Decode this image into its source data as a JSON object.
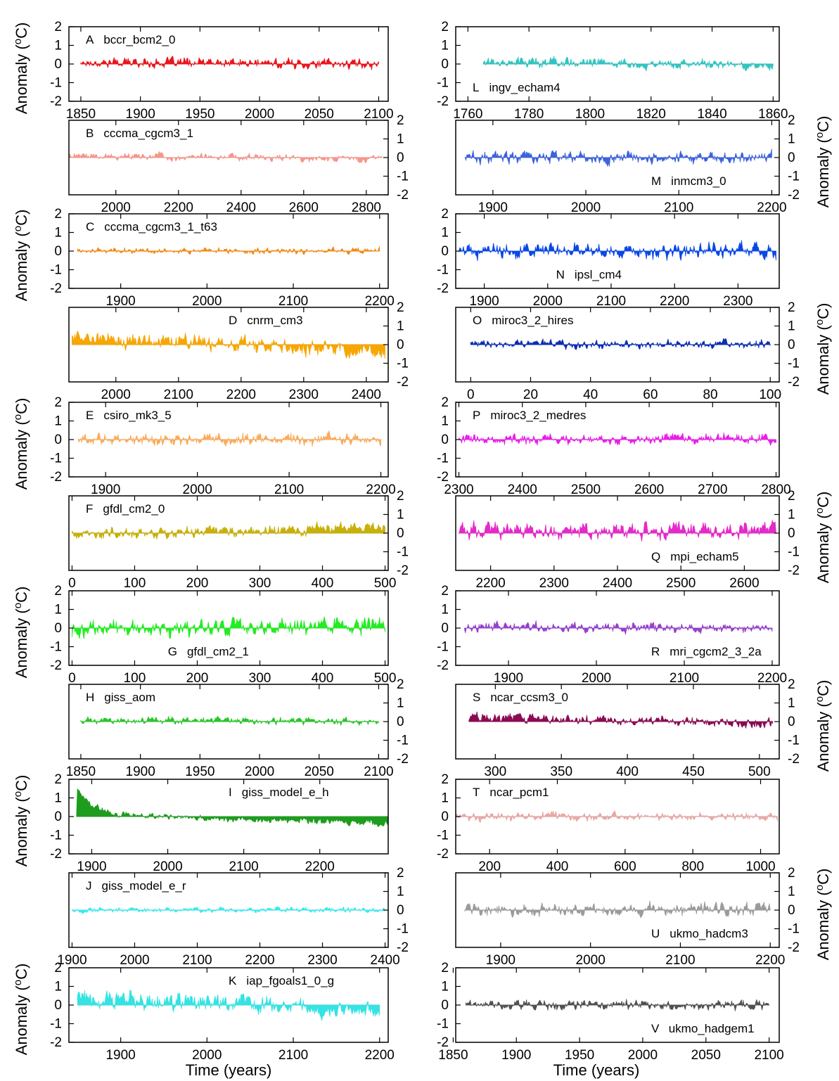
{
  "figure": {
    "y_axis_title": "Anomaly (oC)",
    "y_axis_title_prefix": "Anomaly (",
    "y_axis_title_sup": "o",
    "y_axis_title_suffix": "C)",
    "x_axis_title": "Time (years)"
  },
  "chart_data": [
    {
      "type": "area",
      "letter": "A",
      "name": "bccr_bcm2_0",
      "label_position": "top-left",
      "color": "#e8161c",
      "x_range": [
        1850,
        2100
      ],
      "xlim": [
        1840,
        2108
      ],
      "xticks": [
        1850,
        1900,
        1950,
        2000,
        2050,
        2100
      ],
      "ylim": [
        -2,
        2
      ],
      "yticks": [
        2,
        1,
        0,
        -1,
        -2
      ],
      "y_axis_side": "left",
      "x_ticks_visible": true,
      "amplitude": 0.22,
      "trend": [
        0.1,
        0.0
      ]
    },
    {
      "type": "area",
      "letter": "L",
      "name": "ingv_echam4",
      "label_position": "bottom-left",
      "color": "#33c4c0",
      "x_range": [
        1765,
        1860
      ],
      "xlim": [
        1756,
        1862
      ],
      "xticks": [
        1760,
        1780,
        1800,
        1820,
        1840,
        1860
      ],
      "ylim": [
        -2,
        2
      ],
      "yticks": [
        2,
        1,
        0,
        -1,
        -2
      ],
      "y_axis_side": "left",
      "x_ticks_visible": true,
      "amplitude": 0.22,
      "trend": [
        0.15,
        -0.1
      ]
    },
    {
      "type": "area",
      "letter": "B",
      "name": "cccma_cgcm3_1",
      "label_position": "top-left",
      "color": "#f7968a",
      "x_range": [
        1850,
        2850
      ],
      "xlim": [
        1850,
        2870
      ],
      "xticks": [
        2000,
        2200,
        2400,
        2600,
        2800
      ],
      "ylim": [
        -2,
        2
      ],
      "yticks": [
        2,
        1,
        0,
        -1,
        -2
      ],
      "y_axis_side": "right",
      "x_ticks_visible": true,
      "amplitude": 0.15,
      "trend": [
        0.1,
        -0.1
      ]
    },
    {
      "type": "area",
      "letter": "M",
      "name": "inmcm3_0",
      "label_position": "bottom-right",
      "color": "#3d63dc",
      "x_range": [
        1870,
        2200
      ],
      "xlim": [
        1860,
        2208
      ],
      "xticks": [
        1900,
        2000,
        2100,
        2200
      ],
      "ylim": [
        -2,
        2
      ],
      "yticks": [
        2,
        1,
        0,
        -1,
        -2
      ],
      "y_axis_side": "right",
      "x_ticks_visible": true,
      "amplitude": 0.28,
      "trend": [
        0.0,
        0.05
      ]
    },
    {
      "type": "area",
      "letter": "C",
      "name": "cccma_cgcm3_1_t63",
      "label_position": "top-left",
      "color": "#f58a10",
      "x_range": [
        1850,
        2200
      ],
      "xlim": [
        1840,
        2210
      ],
      "xticks": [
        1900,
        2000,
        2100,
        2200
      ],
      "ylim": [
        -2,
        2
      ],
      "yticks": [
        2,
        1,
        0,
        -1,
        -2
      ],
      "y_axis_side": "left",
      "x_ticks_visible": true,
      "amplitude": 0.14,
      "trend": [
        0.05,
        0.0
      ]
    },
    {
      "type": "area",
      "letter": "N",
      "name": "ipsl_cm4",
      "label_position": "bottom-middle",
      "color": "#0a48e6",
      "x_range": [
        1860,
        2360
      ],
      "xlim": [
        1855,
        2365
      ],
      "xticks": [
        1900,
        2000,
        2100,
        2200,
        2300
      ],
      "ylim": [
        -2,
        2
      ],
      "yticks": [
        2,
        1,
        0,
        -1,
        -2
      ],
      "y_axis_side": "left",
      "x_ticks_visible": true,
      "amplitude": 0.35,
      "trend": [
        0.0,
        0.05
      ]
    },
    {
      "type": "area",
      "letter": "D",
      "name": "cnrm_cm3",
      "label_position": "top-right",
      "color": "#f7a602",
      "x_range": [
        1930,
        2430
      ],
      "xlim": [
        1925,
        2435
      ],
      "xticks": [
        2000,
        2100,
        2200,
        2300,
        2400
      ],
      "ylim": [
        -2,
        2
      ],
      "yticks": [
        2,
        1,
        0,
        -1,
        -2
      ],
      "y_axis_side": "right",
      "x_ticks_visible": true,
      "amplitude": 0.35,
      "trend": [
        0.4,
        -0.4
      ]
    },
    {
      "type": "area",
      "letter": "O",
      "name": "miroc3_2_hires",
      "label_position": "top-left",
      "color": "#0a2eb4",
      "x_range": [
        0,
        100
      ],
      "xlim": [
        -5,
        103
      ],
      "xticks": [
        0,
        20,
        40,
        60,
        80,
        100
      ],
      "ylim": [
        -2,
        2
      ],
      "yticks": [
        2,
        1,
        0,
        -1,
        -2
      ],
      "y_axis_side": "right",
      "x_ticks_visible": true,
      "amplitude": 0.18,
      "trend": [
        0.0,
        0.05
      ]
    },
    {
      "type": "area",
      "letter": "E",
      "name": "csiro_mk3_5",
      "label_position": "top-left",
      "color": "#fbab5c",
      "x_range": [
        1870,
        2200
      ],
      "xlim": [
        1860,
        2208
      ],
      "xticks": [
        1900,
        2000,
        2100,
        2200
      ],
      "ylim": [
        -2,
        2
      ],
      "yticks": [
        2,
        1,
        0,
        -1,
        -2
      ],
      "y_axis_side": "left",
      "x_ticks_visible": true,
      "amplitude": 0.28,
      "trend": [
        0.0,
        0.0
      ]
    },
    {
      "type": "area",
      "letter": "P",
      "name": "miroc3_2_medres",
      "label_position": "top-left",
      "color": "#ea1eea",
      "x_range": [
        2300,
        2800
      ],
      "xlim": [
        2295,
        2805
      ],
      "xticks": [
        2300,
        2400,
        2500,
        2600,
        2700,
        2800
      ],
      "ylim": [
        -2,
        2
      ],
      "yticks": [
        2,
        1,
        0,
        -1,
        -2
      ],
      "y_axis_side": "left",
      "x_ticks_visible": true,
      "amplitude": 0.22,
      "trend": [
        0.0,
        0.05
      ]
    },
    {
      "type": "area",
      "letter": "F",
      "name": "gfdl_cm2_0",
      "label_position": "top-left",
      "color": "#c8b00a",
      "x_range": [
        0,
        500
      ],
      "xlim": [
        -5,
        505
      ],
      "xticks": [
        0,
        100,
        200,
        300,
        400,
        500
      ],
      "ylim": [
        -2,
        2
      ],
      "yticks": [
        2,
        1,
        0,
        -1,
        -2
      ],
      "y_axis_side": "right",
      "x_ticks_visible": true,
      "amplitude": 0.25,
      "trend": [
        -0.1,
        0.35
      ]
    },
    {
      "type": "area",
      "letter": "Q",
      "name": "mpi_echam5",
      "label_position": "bottom-right",
      "color": "#e42ac8",
      "x_range": [
        2150,
        2650
      ],
      "xlim": [
        2145,
        2655
      ],
      "xticks": [
        2200,
        2300,
        2400,
        2500,
        2600
      ],
      "ylim": [
        -2,
        2
      ],
      "yticks": [
        2,
        1,
        0,
        -1,
        -2
      ],
      "y_axis_side": "right",
      "x_ticks_visible": true,
      "amplitude": 0.35,
      "trend": [
        0.1,
        0.15
      ]
    },
    {
      "type": "area",
      "letter": "G",
      "name": "gfdl_cm2_1",
      "label_position": "bottom-middle",
      "color": "#22ec22",
      "x_range": [
        0,
        500
      ],
      "xlim": [
        -5,
        505
      ],
      "xticks": [
        0,
        100,
        200,
        300,
        400,
        500
      ],
      "ylim": [
        -2,
        2
      ],
      "yticks": [
        2,
        1,
        0,
        -1,
        -2
      ],
      "y_axis_side": "left",
      "x_ticks_visible": true,
      "amplitude": 0.38,
      "trend": [
        -0.1,
        0.2
      ]
    },
    {
      "type": "area",
      "letter": "R",
      "name": "mri_cgcm2_3_2a",
      "label_position": "bottom-right",
      "color": "#9640cc",
      "x_range": [
        1850,
        2200
      ],
      "xlim": [
        1840,
        2208
      ],
      "xticks": [
        1900,
        2000,
        2100,
        2200
      ],
      "ylim": [
        -2,
        2
      ],
      "yticks": [
        2,
        1,
        0,
        -1,
        -2
      ],
      "y_axis_side": "left",
      "x_ticks_visible": true,
      "amplitude": 0.22,
      "trend": [
        0.05,
        0.0
      ]
    },
    {
      "type": "area",
      "letter": "H",
      "name": "giss_aom",
      "label_position": "top-left",
      "color": "#28c828",
      "x_range": [
        1850,
        2100
      ],
      "xlim": [
        1840,
        2108
      ],
      "xticks": [
        1850,
        1900,
        1950,
        2000,
        2050,
        2100
      ],
      "ylim": [
        -2,
        2
      ],
      "yticks": [
        2,
        1,
        0,
        -1,
        -2
      ],
      "y_axis_side": "right",
      "x_ticks_visible": true,
      "amplitude": 0.16,
      "trend": [
        0.1,
        0.0
      ]
    },
    {
      "type": "area",
      "letter": "S",
      "name": "ncar_ccsm3_0",
      "label_position": "top-left",
      "color": "#8c0a52",
      "x_range": [
        280,
        510
      ],
      "xlim": [
        270,
        515
      ],
      "xticks": [
        300,
        350,
        400,
        450,
        500
      ],
      "ylim": [
        -2,
        2
      ],
      "yticks": [
        2,
        1,
        0,
        -1,
        -2
      ],
      "y_axis_side": "right",
      "x_ticks_visible": true,
      "amplitude": 0.22,
      "trend": [
        0.25,
        -0.1
      ]
    },
    {
      "type": "area",
      "letter": "I",
      "name": "giss_model_e_h",
      "label_position": "top-right",
      "color": "#1e9c1e",
      "x_range": [
        1880,
        2290
      ],
      "xlim": [
        1870,
        2290
      ],
      "xticks": [
        1900,
        2000,
        2100,
        2200
      ],
      "ylim": [
        -2,
        2
      ],
      "yticks": [
        2,
        1,
        0,
        -1,
        -2
      ],
      "y_axis_side": "left",
      "x_ticks_visible": true,
      "amplitude": 0.14,
      "trend": [
        0.6,
        -0.3
      ],
      "spike": true
    },
    {
      "type": "area",
      "letter": "T",
      "name": "ncar_pcm1",
      "label_position": "top-left",
      "color": "#e6a8a4",
      "x_range": [
        100,
        1050
      ],
      "xlim": [
        100,
        1055
      ],
      "xticks": [
        200,
        400,
        600,
        800,
        1000
      ],
      "ylim": [
        -2,
        2
      ],
      "yticks": [
        2,
        1,
        0,
        -1,
        -2
      ],
      "y_axis_side": "left",
      "x_ticks_visible": true,
      "amplitude": 0.2,
      "trend": [
        0.0,
        0.0
      ]
    },
    {
      "type": "area",
      "letter": "J",
      "name": "giss_model_e_r",
      "label_position": "top-left",
      "color": "#33ecf2",
      "x_range": [
        1900,
        2400
      ],
      "xlim": [
        1895,
        2405
      ],
      "xticks": [
        1900,
        2000,
        2100,
        2200,
        2300,
        2400
      ],
      "ylim": [
        -2,
        2
      ],
      "yticks": [
        2,
        1,
        0,
        -1,
        -2
      ],
      "y_axis_side": "right",
      "x_ticks_visible": true,
      "amplitude": 0.12,
      "trend": [
        0.0,
        0.0
      ]
    },
    {
      "type": "area",
      "letter": "U",
      "name": "ukmo_hadcm3",
      "label_position": "bottom-right",
      "color": "#9b9b9b",
      "x_range": [
        1860,
        2200
      ],
      "xlim": [
        1850,
        2210
      ],
      "xticks": [
        1900,
        2000,
        2100,
        2200
      ],
      "ylim": [
        -2,
        2
      ],
      "yticks": [
        2,
        1,
        0,
        -1,
        -2
      ],
      "y_axis_side": "right",
      "x_ticks_visible": true,
      "amplitude": 0.3,
      "trend": [
        0.0,
        0.05
      ]
    },
    {
      "type": "area",
      "letter": "K",
      "name": "iap_fgoals1_0_g",
      "label_position": "top-right",
      "color": "#35e3e3",
      "x_range": [
        1850,
        2200
      ],
      "xlim": [
        1840,
        2210
      ],
      "xticks": [
        1900,
        2000,
        2100,
        2200
      ],
      "ylim": [
        -2,
        2
      ],
      "yticks": [
        2,
        1,
        0,
        -1,
        -2
      ],
      "y_axis_side": "left",
      "x_ticks_visible": true,
      "amplitude": 0.38,
      "trend": [
        0.45,
        -0.3
      ]
    },
    {
      "type": "area",
      "letter": "V",
      "name": "ukmo_hadgem1",
      "label_position": "bottom-right",
      "color": "#505050",
      "x_range": [
        1860,
        2100
      ],
      "xlim": [
        1852,
        2108
      ],
      "xticks": [
        1850,
        1900,
        1950,
        2000,
        2050,
        2100
      ],
      "ylim": [
        -2,
        2
      ],
      "yticks": [
        2,
        1,
        0,
        -1,
        -2
      ],
      "y_axis_side": "left",
      "x_ticks_visible": true,
      "amplitude": 0.22,
      "trend": [
        0.0,
        0.0
      ]
    }
  ]
}
